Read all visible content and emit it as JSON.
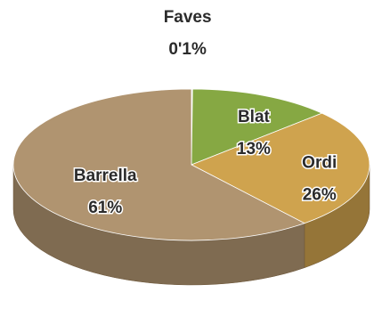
{
  "chart_data": {
    "type": "pie3d",
    "categories": [
      "Faves",
      "Blat",
      "Ordi",
      "Barrella"
    ],
    "values": [
      0.1,
      13,
      26,
      61
    ],
    "value_labels": [
      "0'1%",
      "13%",
      "26%",
      "61%"
    ],
    "colors": [
      "#dfe8f0",
      "#86a843",
      "#cfa34e",
      "#b09470"
    ]
  }
}
